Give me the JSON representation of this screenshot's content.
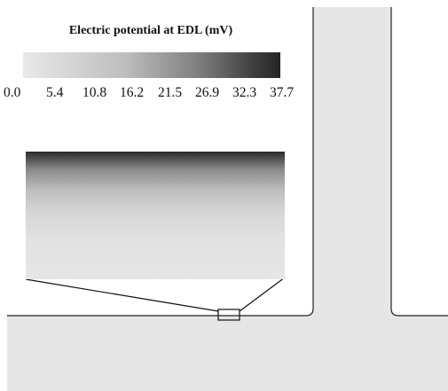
{
  "legend": {
    "title": "Electric potential at EDL (mV)",
    "ticks": [
      "0.0",
      "5.4",
      "10.8",
      "16.2",
      "21.5",
      "26.9",
      "32.3",
      "37.7"
    ],
    "colormap": {
      "min_color": "#e9e9e9",
      "max_color": "#242424"
    }
  },
  "colors": {
    "fluid": "#e6e6e6",
    "wall": "#222222",
    "background": "#ffffff"
  }
}
